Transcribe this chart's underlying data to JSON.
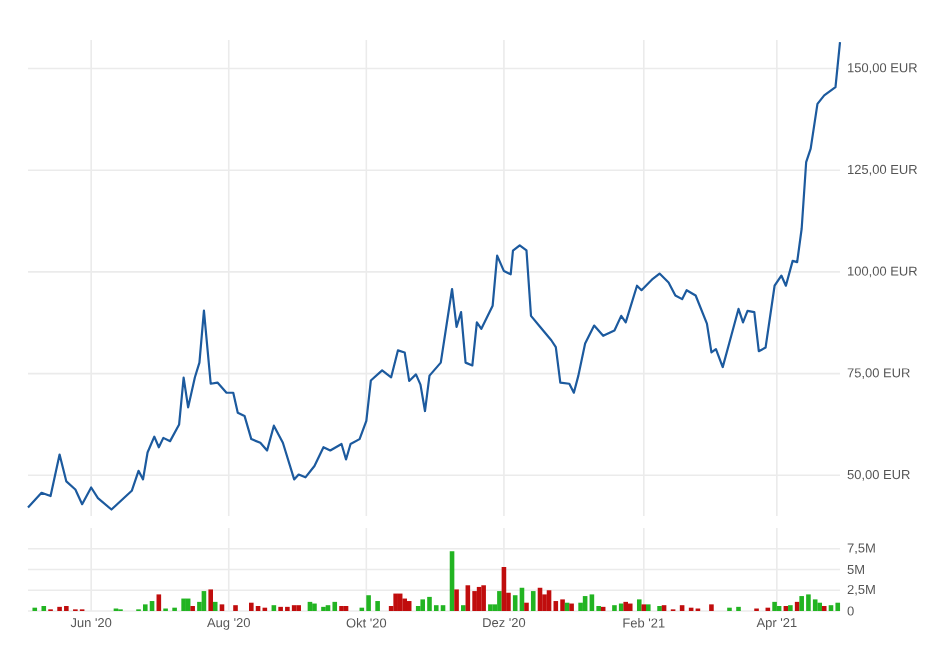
{
  "chart_data": [
    {
      "type": "line",
      "color": "#1c5a9e",
      "grid": true,
      "tick_labels": "y",
      "x": [
        "2020-05-04",
        "2020-05-10",
        "2020-05-14",
        "2020-05-18",
        "2020-05-21",
        "2020-05-25",
        "2020-05-28",
        "2020-06-01",
        "2020-06-04",
        "2020-06-10",
        "2020-06-19",
        "2020-06-22",
        "2020-06-24",
        "2020-06-26",
        "2020-06-29",
        "2020-07-01",
        "2020-07-03",
        "2020-07-06",
        "2020-07-10",
        "2020-07-12",
        "2020-07-14",
        "2020-07-17",
        "2020-07-19",
        "2020-07-21",
        "2020-07-24",
        "2020-07-27",
        "2020-07-31",
        "2020-08-03",
        "2020-08-05",
        "2020-08-08",
        "2020-08-11",
        "2020-08-15",
        "2020-08-18",
        "2020-08-21",
        "2020-08-25",
        "2020-08-30",
        "2020-09-01",
        "2020-09-04",
        "2020-09-08",
        "2020-09-12",
        "2020-09-15",
        "2020-09-20",
        "2020-09-22",
        "2020-09-24",
        "2020-09-28",
        "2020-10-01",
        "2020-10-03",
        "2020-10-08",
        "2020-10-12",
        "2020-10-15",
        "2020-10-18",
        "2020-10-20",
        "2020-10-23",
        "2020-10-25",
        "2020-10-27",
        "2020-10-29",
        "2020-11-03",
        "2020-11-08",
        "2020-11-10",
        "2020-11-12",
        "2020-11-14",
        "2020-11-17",
        "2020-11-19",
        "2020-11-21",
        "2020-11-26",
        "2020-11-28",
        "2020-12-01",
        "2020-12-04",
        "2020-12-05",
        "2020-12-08",
        "2020-12-11",
        "2020-12-13",
        "2020-12-17",
        "2020-12-22",
        "2020-12-24",
        "2020-12-26",
        "2020-12-30",
        "2021-01-01",
        "2021-01-03",
        "2021-01-06",
        "2021-01-10",
        "2021-01-14",
        "2021-01-19",
        "2021-01-22",
        "2021-01-24",
        "2021-01-29",
        "2021-01-31",
        "2021-02-05",
        "2021-02-08",
        "2021-02-12",
        "2021-02-15",
        "2021-02-18",
        "2021-02-20",
        "2021-02-24",
        "2021-03-01",
        "2021-03-03",
        "2021-03-05",
        "2021-03-08",
        "2021-03-11",
        "2021-03-15",
        "2021-03-17",
        "2021-03-19",
        "2021-03-22",
        "2021-03-24",
        "2021-03-27",
        "2021-03-31",
        "2021-04-03",
        "2021-04-05",
        "2021-04-08",
        "2021-04-10",
        "2021-04-12",
        "2021-04-14",
        "2021-04-16",
        "2021-04-19",
        "2021-04-22",
        "2021-04-27",
        "2021-04-29"
      ],
      "values": [
        42.1,
        45.7,
        44.9,
        55.1,
        48.5,
        46.5,
        42.9,
        47.0,
        44.4,
        41.6,
        46.2,
        51.1,
        49.0,
        55.6,
        59.5,
        56.9,
        59.2,
        58.4,
        62.5,
        74.0,
        66.7,
        74.1,
        77.7,
        90.5,
        72.5,
        72.8,
        70.3,
        70.3,
        65.4,
        64.6,
        58.9,
        58.0,
        56.1,
        62.2,
        58.0,
        49.0,
        50.2,
        49.5,
        52.3,
        56.9,
        56.1,
        57.7,
        53.9,
        57.7,
        58.9,
        63.4,
        73.3,
        75.8,
        74.1,
        80.7,
        80.2,
        73.2,
        74.8,
        72.3,
        65.8,
        74.5,
        77.7,
        95.8,
        86.5,
        90.1,
        77.7,
        77.0,
        87.6,
        86.0,
        91.7,
        104.0,
        100.2,
        99.4,
        105.2,
        106.5,
        105.3,
        89.2,
        86.5,
        83.2,
        81.5,
        72.8,
        72.5,
        70.3,
        74.5,
        82.4,
        86.8,
        84.3,
        85.6,
        89.2,
        87.6,
        96.6,
        95.5,
        98.3,
        99.6,
        97.4,
        94.2,
        93.3,
        95.5,
        94.2,
        87.3,
        80.2,
        81.0,
        76.6,
        82.7,
        90.9,
        87.6,
        90.4,
        90.1,
        80.5,
        81.4,
        96.6,
        99.1,
        96.6,
        102.7,
        102.4,
        110.6,
        127.0,
        130.3,
        141.3,
        143.4,
        145.4,
        156.5
      ],
      "xlim": [
        "2020-05-04",
        "2021-04-29"
      ],
      "ylim": [
        40,
        157
      ],
      "xticks": [
        {
          "value": "2020-06-01",
          "label": null
        },
        {
          "value": "2020-08-01",
          "label": null
        },
        {
          "value": "2020-10-01",
          "label": null
        },
        {
          "value": "2020-12-01",
          "label": null
        },
        {
          "value": "2021-02-01",
          "label": null
        },
        {
          "value": "2021-04-01",
          "label": null
        }
      ],
      "yticks": [
        {
          "value": 50,
          "label": "50,00 EUR"
        },
        {
          "value": 75,
          "label": "75,00 EUR"
        },
        {
          "value": 100,
          "label": "100,00 EUR"
        },
        {
          "value": 125,
          "label": "125,00 EUR"
        },
        {
          "value": 150,
          "label": "150,00 EUR"
        }
      ]
    },
    {
      "type": "bar",
      "grid": true,
      "x": [
        "2020-05-07",
        "2020-05-11",
        "2020-05-14",
        "2020-05-18",
        "2020-05-21",
        "2020-05-25",
        "2020-05-28",
        "2020-06-12",
        "2020-06-14",
        "2020-06-22",
        "2020-06-25",
        "2020-06-28",
        "2020-07-01",
        "2020-07-04",
        "2020-07-08",
        "2020-07-12",
        "2020-07-14",
        "2020-07-16",
        "2020-07-19",
        "2020-07-21",
        "2020-07-24",
        "2020-07-26",
        "2020-07-29",
        "2020-08-04",
        "2020-08-11",
        "2020-08-14",
        "2020-08-17",
        "2020-08-21",
        "2020-08-24",
        "2020-08-27",
        "2020-08-30",
        "2020-09-01",
        "2020-09-06",
        "2020-09-08",
        "2020-09-12",
        "2020-09-14",
        "2020-09-17",
        "2020-09-20",
        "2020-09-22",
        "2020-09-29",
        "2020-10-02",
        "2020-10-06",
        "2020-10-12",
        "2020-10-14",
        "2020-10-16",
        "2020-10-18",
        "2020-10-20",
        "2020-10-24",
        "2020-10-26",
        "2020-10-29",
        "2020-11-01",
        "2020-11-04",
        "2020-11-08",
        "2020-11-10",
        "2020-11-13",
        "2020-11-15",
        "2020-11-18",
        "2020-11-20",
        "2020-11-22",
        "2020-11-25",
        "2020-11-27",
        "2020-11-29",
        "2020-12-01",
        "2020-12-03",
        "2020-12-06",
        "2020-12-09",
        "2020-12-11",
        "2020-12-14",
        "2020-12-17",
        "2020-12-19",
        "2020-12-21",
        "2020-12-24",
        "2020-12-27",
        "2020-12-29",
        "2020-12-31",
        "2021-01-04",
        "2021-01-06",
        "2021-01-09",
        "2021-01-12",
        "2021-01-14",
        "2021-01-19",
        "2021-01-22",
        "2021-01-24",
        "2021-01-26",
        "2021-01-30",
        "2021-02-01",
        "2021-02-03",
        "2021-02-08",
        "2021-02-10",
        "2021-02-14",
        "2021-02-18",
        "2021-02-22",
        "2021-02-25",
        "2021-03-03",
        "2021-03-11",
        "2021-03-15",
        "2021-03-23",
        "2021-03-28",
        "2021-03-31",
        "2021-04-02",
        "2021-04-05",
        "2021-04-07",
        "2021-04-10",
        "2021-04-12",
        "2021-04-15",
        "2021-04-18",
        "2021-04-20",
        "2021-04-22",
        "2021-04-25",
        "2021-04-28"
      ],
      "values": [
        0.4,
        0.6,
        0.2,
        0.5,
        0.6,
        0.2,
        0.2,
        0.3,
        0.2,
        0.2,
        0.8,
        1.2,
        2.0,
        0.3,
        0.4,
        1.5,
        1.5,
        0.6,
        1.1,
        2.4,
        2.6,
        1.1,
        0.8,
        0.7,
        1.0,
        0.6,
        0.4,
        0.7,
        0.5,
        0.5,
        0.7,
        0.7,
        1.1,
        0.9,
        0.5,
        0.7,
        1.1,
        0.6,
        0.6,
        0.4,
        1.9,
        1.2,
        0.6,
        2.1,
        2.1,
        1.5,
        1.2,
        0.6,
        1.4,
        1.7,
        0.7,
        0.7,
        7.2,
        2.6,
        0.7,
        3.1,
        2.4,
        2.9,
        3.1,
        0.8,
        0.8,
        2.4,
        5.3,
        2.2,
        1.9,
        2.8,
        1.0,
        2.4,
        2.8,
        2.0,
        2.5,
        1.2,
        1.4,
        1.0,
        0.9,
        1.0,
        1.8,
        2.0,
        0.6,
        0.5,
        0.7,
        0.9,
        1.1,
        0.9,
        1.4,
        0.8,
        0.8,
        0.6,
        0.7,
        0.2,
        0.7,
        0.4,
        0.3,
        0.8,
        0.4,
        0.5,
        0.3,
        0.4,
        1.1,
        0.6,
        0.6,
        0.7,
        1.1,
        1.8,
        2.0,
        1.4,
        1.0,
        0.6,
        0.7,
        1.0
      ],
      "colors": [
        "#22b422",
        "#22b422",
        "#c00d0d",
        "#c00d0d",
        "#c00d0d",
        "#c00d0d",
        "#c00d0d",
        "#22b422",
        "#22b422",
        "#22b422",
        "#22b422",
        "#22b422",
        "#c00d0d",
        "#22b422",
        "#22b422",
        "#22b422",
        "#22b422",
        "#c00d0d",
        "#22b422",
        "#22b422",
        "#c00d0d",
        "#22b422",
        "#c00d0d",
        "#c00d0d",
        "#c00d0d",
        "#c00d0d",
        "#c00d0d",
        "#22b422",
        "#c00d0d",
        "#c00d0d",
        "#c00d0d",
        "#c00d0d",
        "#22b422",
        "#22b422",
        "#22b422",
        "#22b422",
        "#22b422",
        "#c00d0d",
        "#c00d0d",
        "#22b422",
        "#22b422",
        "#22b422",
        "#c00d0d",
        "#c00d0d",
        "#c00d0d",
        "#c00d0d",
        "#c00d0d",
        "#22b422",
        "#22b422",
        "#22b422",
        "#22b422",
        "#22b422",
        "#22b422",
        "#c00d0d",
        "#22b422",
        "#c00d0d",
        "#c00d0d",
        "#c00d0d",
        "#c00d0d",
        "#22b422",
        "#22b422",
        "#22b422",
        "#c00d0d",
        "#c00d0d",
        "#22b422",
        "#22b422",
        "#c00d0d",
        "#22b422",
        "#c00d0d",
        "#c00d0d",
        "#c00d0d",
        "#c00d0d",
        "#c00d0d",
        "#22b422",
        "#c00d0d",
        "#22b422",
        "#22b422",
        "#22b422",
        "#22b422",
        "#c00d0d",
        "#22b422",
        "#22b422",
        "#c00d0d",
        "#c00d0d",
        "#22b422",
        "#c00d0d",
        "#22b422",
        "#22b422",
        "#c00d0d",
        "#c00d0d",
        "#c00d0d",
        "#c00d0d",
        "#c00d0d",
        "#c00d0d",
        "#22b422",
        "#22b422",
        "#c00d0d",
        "#c00d0d",
        "#22b422",
        "#22b422",
        "#c00d0d",
        "#22b422",
        "#c00d0d",
        "#22b422",
        "#22b422",
        "#22b422",
        "#22b422",
        "#c00d0d",
        "#22b422",
        "#22b422"
      ],
      "xlim": [
        "2020-05-04",
        "2021-04-29"
      ],
      "ylim": [
        0,
        10
      ],
      "xticks": [
        {
          "value": "2020-06-01",
          "label": "Jun '20"
        },
        {
          "value": "2020-08-01",
          "label": "Aug '20"
        },
        {
          "value": "2020-10-01",
          "label": "Okt '20"
        },
        {
          "value": "2020-12-01",
          "label": "Dez '20"
        },
        {
          "value": "2021-02-01",
          "label": "Feb '21"
        },
        {
          "value": "2021-04-01",
          "label": "Apr '21"
        }
      ],
      "yticks": [
        0,
        {
          "value": 2.5,
          "label": "2,5M"
        },
        {
          "value": 5,
          "label": "5M"
        },
        {
          "value": 7.5,
          "label": "7,5M"
        }
      ]
    }
  ]
}
